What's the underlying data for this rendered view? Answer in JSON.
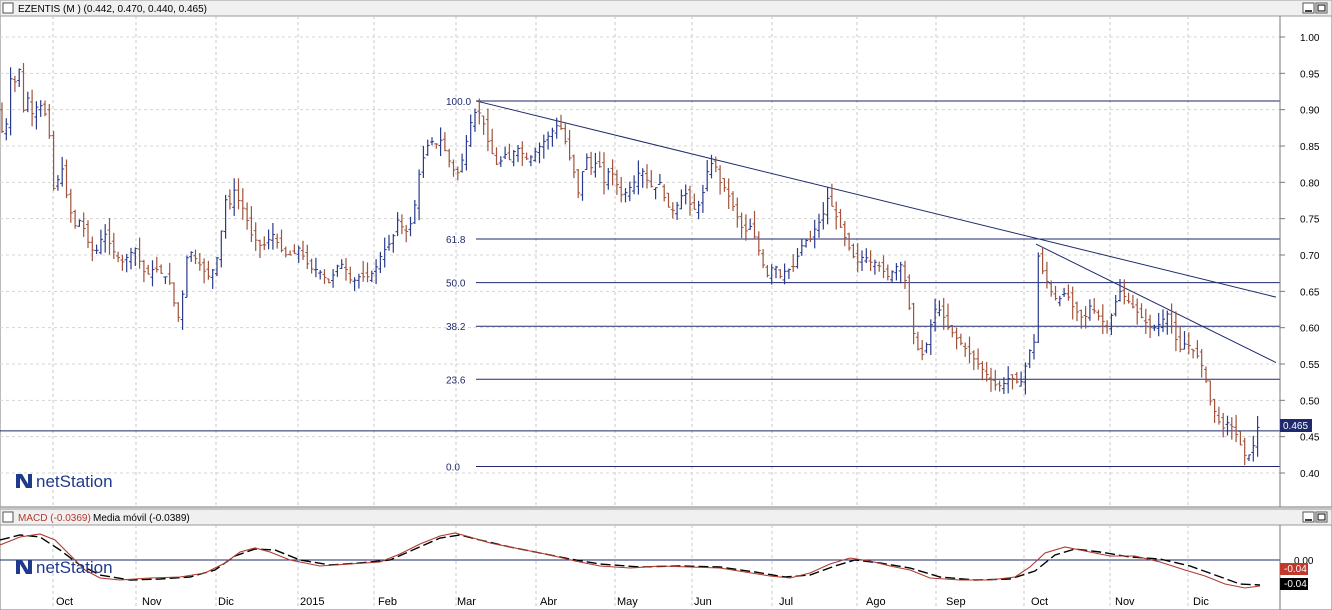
{
  "main_panel": {
    "title": "EZENTIS (M ) (0.442, 0.470, 0.440, 0.465)",
    "watermark": "netStation",
    "last_price_label": "0.465"
  },
  "macd_panel": {
    "macd_label": "MACD (-0.0369)",
    "signal_label": "Media móvil (-0.0389)",
    "watermark": "netStation",
    "axis_tick": "0.00",
    "value_badge_1": "-0.04",
    "value_badge_2": "-0.04"
  },
  "x_axis_labels": [
    "Oct",
    "Nov",
    "Dic",
    "2015",
    "Feb",
    "Mar",
    "Abr",
    "May",
    "Jun",
    "Jul",
    "Ago",
    "Sep",
    "Oct",
    "Nov",
    "Dic"
  ],
  "colors": {
    "up_bar": "#2a3a8c",
    "down_bar": "#a0523a",
    "lines": "#1f2a6e",
    "macd_line": "#b03a2e",
    "signal_line": "#000000",
    "badge_bg": "#1f2a6e",
    "badge_red": "#c0392b"
  },
  "chart_data": [
    {
      "type": "ohlc",
      "ylim": [
        0.38,
        1.02
      ],
      "y_ticks": [
        "1.00",
        "0.95",
        "0.90",
        "0.85",
        "0.80",
        "0.75",
        "0.70",
        "0.65",
        "0.60",
        "0.55",
        "0.50",
        "0.45",
        "0.40"
      ],
      "fibonacci_levels": [
        {
          "label": "100.0",
          "value": 0.912
        },
        {
          "label": "61.8",
          "value": 0.722
        },
        {
          "label": "50.0",
          "value": 0.662
        },
        {
          "label": "38.2",
          "value": 0.602
        },
        {
          "label": "23.6",
          "value": 0.529
        },
        {
          "label": "0.0",
          "value": 0.409
        }
      ],
      "horizontal_price_line": 0.458,
      "trendlines": [
        {
          "from": {
            "date": "2015-03",
            "value": 0.912
          },
          "to": {
            "date": "2015-12-end",
            "value": 0.642
          }
        },
        {
          "from": {
            "date": "2015-10",
            "value": 0.715
          },
          "to": {
            "date": "2015-12-end",
            "value": 0.552
          }
        }
      ],
      "x_labels": [
        "Oct",
        "Nov",
        "Dic",
        "2015",
        "Feb",
        "Mar",
        "Abr",
        "May",
        "Jun",
        "Jul",
        "Ago",
        "Sep",
        "Oct",
        "Nov",
        "Dic"
      ],
      "close_path": [
        [
          0,
          0.9
        ],
        [
          4,
          0.84
        ],
        [
          8,
          0.91
        ],
        [
          12,
          0.96
        ],
        [
          16,
          0.93
        ],
        [
          19,
          0.96
        ],
        [
          22,
          0.89
        ],
        [
          27,
          0.92
        ],
        [
          33,
          0.89
        ],
        [
          38,
          0.91
        ],
        [
          44,
          0.9
        ],
        [
          49,
          0.87
        ],
        [
          53,
          0.79
        ],
        [
          57,
          0.8
        ],
        [
          62,
          0.82
        ],
        [
          68,
          0.77
        ],
        [
          75,
          0.74
        ],
        [
          81,
          0.75
        ],
        [
          87,
          0.72
        ],
        [
          91,
          0.71
        ],
        [
          95,
          0.7
        ],
        [
          100,
          0.72
        ],
        [
          106,
          0.73
        ],
        [
          111,
          0.71
        ],
        [
          116,
          0.7
        ],
        [
          122,
          0.69
        ],
        [
          129,
          0.7
        ],
        [
          135,
          0.71
        ],
        [
          140,
          0.69
        ],
        [
          146,
          0.67
        ],
        [
          152,
          0.68
        ],
        [
          158,
          0.68
        ],
        [
          164,
          0.67
        ],
        [
          168,
          0.67
        ],
        [
          172,
          0.65
        ],
        [
          177,
          0.61
        ],
        [
          180,
          0.62
        ],
        [
          184,
          0.66
        ],
        [
          188,
          0.71
        ],
        [
          193,
          0.7
        ],
        [
          198,
          0.69
        ],
        [
          203,
          0.68
        ],
        [
          208,
          0.67
        ],
        [
          213,
          0.68
        ],
        [
          218,
          0.7
        ],
        [
          222,
          0.74
        ],
        [
          226,
          0.78
        ],
        [
          230,
          0.77
        ],
        [
          234,
          0.79
        ],
        [
          240,
          0.77
        ],
        [
          245,
          0.76
        ],
        [
          250,
          0.73
        ],
        [
          256,
          0.72
        ],
        [
          262,
          0.71
        ],
        [
          268,
          0.72
        ],
        [
          274,
          0.73
        ],
        [
          279,
          0.71
        ],
        [
          286,
          0.7
        ],
        [
          293,
          0.7
        ],
        [
          299,
          0.71
        ],
        [
          306,
          0.69
        ],
        [
          312,
          0.68
        ],
        [
          318,
          0.68
        ],
        [
          324,
          0.67
        ],
        [
          330,
          0.66
        ],
        [
          335,
          0.68
        ],
        [
          340,
          0.69
        ],
        [
          346,
          0.68
        ],
        [
          352,
          0.66
        ],
        [
          357,
          0.67
        ],
        [
          363,
          0.67
        ],
        [
          369,
          0.67
        ],
        [
          375,
          0.68
        ],
        [
          381,
          0.7
        ],
        [
          386,
          0.71
        ],
        [
          392,
          0.72
        ],
        [
          398,
          0.75
        ],
        [
          405,
          0.73
        ],
        [
          410,
          0.74
        ],
        [
          415,
          0.77
        ],
        [
          420,
          0.82
        ],
        [
          425,
          0.84
        ],
        [
          430,
          0.86
        ],
        [
          435,
          0.85
        ],
        [
          440,
          0.86
        ],
        [
          446,
          0.84
        ],
        [
          452,
          0.82
        ],
        [
          457,
          0.81
        ],
        [
          462,
          0.83
        ],
        [
          467,
          0.86
        ],
        [
          472,
          0.89
        ],
        [
          477,
          0.9
        ],
        [
          482,
          0.89
        ],
        [
          487,
          0.86
        ],
        [
          492,
          0.84
        ],
        [
          498,
          0.82
        ],
        [
          504,
          0.84
        ],
        [
          510,
          0.83
        ],
        [
          516,
          0.85
        ],
        [
          522,
          0.84
        ],
        [
          528,
          0.83
        ],
        [
          534,
          0.84
        ],
        [
          540,
          0.85
        ],
        [
          546,
          0.86
        ],
        [
          552,
          0.87
        ],
        [
          558,
          0.88
        ],
        [
          563,
          0.87
        ],
        [
          568,
          0.84
        ],
        [
          573,
          0.82
        ],
        [
          579,
          0.78
        ],
        [
          585,
          0.84
        ],
        [
          591,
          0.82
        ],
        [
          598,
          0.83
        ],
        [
          604,
          0.8
        ],
        [
          610,
          0.82
        ],
        [
          616,
          0.8
        ],
        [
          622,
          0.78
        ],
        [
          628,
          0.79
        ],
        [
          634,
          0.8
        ],
        [
          641,
          0.82
        ],
        [
          648,
          0.8
        ],
        [
          654,
          0.79
        ],
        [
          660,
          0.8
        ],
        [
          666,
          0.77
        ],
        [
          672,
          0.76
        ],
        [
          678,
          0.77
        ],
        [
          684,
          0.79
        ],
        [
          690,
          0.77
        ],
        [
          696,
          0.76
        ],
        [
          702,
          0.78
        ],
        [
          708,
          0.82
        ],
        [
          714,
          0.83
        ],
        [
          720,
          0.8
        ],
        [
          726,
          0.79
        ],
        [
          732,
          0.77
        ],
        [
          738,
          0.75
        ],
        [
          744,
          0.73
        ],
        [
          750,
          0.74
        ],
        [
          756,
          0.72
        ],
        [
          762,
          0.69
        ],
        [
          768,
          0.67
        ],
        [
          774,
          0.69
        ],
        [
          780,
          0.67
        ],
        [
          786,
          0.68
        ],
        [
          792,
          0.68
        ],
        [
          798,
          0.7
        ],
        [
          804,
          0.72
        ],
        [
          810,
          0.72
        ],
        [
          816,
          0.74
        ],
        [
          822,
          0.75
        ],
        [
          828,
          0.78
        ],
        [
          834,
          0.76
        ],
        [
          840,
          0.74
        ],
        [
          846,
          0.72
        ],
        [
          852,
          0.7
        ],
        [
          858,
          0.69
        ],
        [
          864,
          0.7
        ],
        [
          870,
          0.69
        ],
        [
          876,
          0.69
        ],
        [
          882,
          0.68
        ],
        [
          888,
          0.67
        ],
        [
          894,
          0.68
        ],
        [
          900,
          0.69
        ],
        [
          906,
          0.66
        ],
        [
          912,
          0.6
        ],
        [
          918,
          0.57
        ],
        [
          924,
          0.56
        ],
        [
          930,
          0.6
        ],
        [
          936,
          0.63
        ],
        [
          942,
          0.62
        ],
        [
          948,
          0.6
        ],
        [
          954,
          0.59
        ],
        [
          960,
          0.58
        ],
        [
          966,
          0.57
        ],
        [
          972,
          0.56
        ],
        [
          978,
          0.55
        ],
        [
          984,
          0.54
        ],
        [
          990,
          0.53
        ],
        [
          996,
          0.52
        ],
        [
          1002,
          0.52
        ],
        [
          1008,
          0.53
        ],
        [
          1014,
          0.53
        ],
        [
          1020,
          0.52
        ],
        [
          1026,
          0.55
        ],
        [
          1030,
          0.57
        ],
        [
          1034,
          0.58
        ],
        [
          1038,
          0.7
        ],
        [
          1042,
          0.68
        ],
        [
          1048,
          0.66
        ],
        [
          1054,
          0.64
        ],
        [
          1060,
          0.64
        ],
        [
          1066,
          0.65
        ],
        [
          1072,
          0.63
        ],
        [
          1078,
          0.62
        ],
        [
          1084,
          0.61
        ],
        [
          1090,
          0.63
        ],
        [
          1096,
          0.62
        ],
        [
          1102,
          0.61
        ],
        [
          1108,
          0.6
        ],
        [
          1114,
          0.63
        ],
        [
          1120,
          0.65
        ],
        [
          1126,
          0.64
        ],
        [
          1132,
          0.63
        ],
        [
          1138,
          0.62
        ],
        [
          1144,
          0.61
        ],
        [
          1150,
          0.6
        ],
        [
          1156,
          0.6
        ],
        [
          1162,
          0.61
        ],
        [
          1168,
          0.62
        ],
        [
          1174,
          0.59
        ],
        [
          1180,
          0.57
        ],
        [
          1186,
          0.58
        ],
        [
          1192,
          0.57
        ],
        [
          1198,
          0.56
        ],
        [
          1204,
          0.54
        ],
        [
          1210,
          0.5
        ],
        [
          1216,
          0.48
        ],
        [
          1222,
          0.46
        ],
        [
          1228,
          0.47
        ],
        [
          1234,
          0.46
        ],
        [
          1240,
          0.44
        ],
        [
          1246,
          0.42
        ],
        [
          1252,
          0.43
        ],
        [
          1258,
          0.465
        ]
      ]
    },
    {
      "type": "line",
      "title": "MACD",
      "series": [
        {
          "name": "MACD (-0.0369)",
          "color": "macd_line"
        },
        {
          "name": "Media móvil (-0.0389)",
          "color": "signal_line"
        }
      ],
      "y_ticks": [
        "0.00"
      ],
      "ylim": [
        -0.05,
        0.05
      ]
    }
  ]
}
